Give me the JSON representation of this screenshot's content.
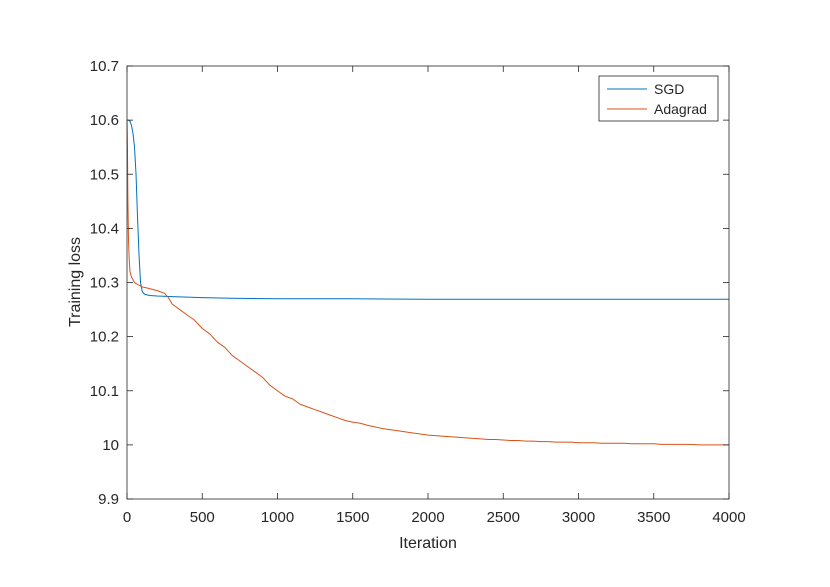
{
  "chart_data": {
    "type": "line",
    "xlabel": "Iteration",
    "ylabel": "Training loss",
    "xlim": [
      0,
      4000
    ],
    "ylim": [
      9.9,
      10.7
    ],
    "xticks": [
      0,
      500,
      1000,
      1500,
      2000,
      2500,
      3000,
      3500,
      4000
    ],
    "xtick_labels": [
      "0",
      "500",
      "1000",
      "1500",
      "2000",
      "2500",
      "3000",
      "3500",
      "4000"
    ],
    "yticks": [
      9.9,
      10,
      10.1,
      10.2,
      10.3,
      10.4,
      10.5,
      10.6,
      10.7
    ],
    "ytick_labels": [
      "9.9",
      "10",
      "10.1",
      "10.2",
      "10.3",
      "10.4",
      "10.5",
      "10.6",
      "10.7"
    ],
    "grid": false,
    "legend_position": "top-right",
    "series": [
      {
        "name": "SGD",
        "color": "#0072BD",
        "x": [
          0,
          10,
          20,
          30,
          40,
          50,
          60,
          70,
          80,
          90,
          100,
          110,
          120,
          150,
          200,
          300,
          400,
          500,
          700,
          1000,
          1500,
          2000,
          2500,
          3000,
          3500,
          4000
        ],
        "y": [
          10.6,
          10.6,
          10.598,
          10.59,
          10.575,
          10.55,
          10.5,
          10.42,
          10.35,
          10.3,
          10.285,
          10.28,
          10.278,
          10.276,
          10.275,
          10.274,
          10.273,
          10.272,
          10.271,
          10.27,
          10.27,
          10.269,
          10.269,
          10.269,
          10.269,
          10.269
        ]
      },
      {
        "name": "Adagrad",
        "color": "#D95319",
        "x": [
          0,
          3,
          6,
          10,
          15,
          20,
          30,
          40,
          50,
          60,
          80,
          100,
          130,
          160,
          200,
          250,
          280,
          300,
          350,
          400,
          450,
          500,
          550,
          600,
          650,
          700,
          750,
          800,
          850,
          900,
          950,
          1000,
          1050,
          1100,
          1150,
          1200,
          1250,
          1300,
          1350,
          1400,
          1450,
          1500,
          1550,
          1600,
          1650,
          1700,
          1750,
          1800,
          1850,
          1900,
          1950,
          2000,
          2050,
          2100,
          2150,
          2200,
          2250,
          2300,
          2350,
          2400,
          2450,
          2500,
          2550,
          2600,
          2650,
          2700,
          2750,
          2800,
          2850,
          2900,
          2950,
          3000,
          3050,
          3100,
          3150,
          3200,
          3250,
          3300,
          3350,
          3400,
          3450,
          3500,
          3550,
          3600,
          3650,
          3700,
          3750,
          3800,
          3850,
          3900,
          3950,
          4000
        ],
        "y": [
          10.6,
          10.55,
          10.45,
          10.38,
          10.34,
          10.32,
          10.31,
          10.305,
          10.3,
          10.298,
          10.295,
          10.292,
          10.29,
          10.288,
          10.285,
          10.28,
          10.27,
          10.26,
          10.25,
          10.24,
          10.23,
          10.215,
          10.205,
          10.19,
          10.18,
          10.165,
          10.155,
          10.145,
          10.135,
          10.125,
          10.11,
          10.1,
          10.09,
          10.085,
          10.075,
          10.07,
          10.065,
          10.06,
          10.055,
          10.05,
          10.045,
          10.042,
          10.04,
          10.036,
          10.033,
          10.03,
          10.028,
          10.026,
          10.024,
          10.022,
          10.02,
          10.018,
          10.017,
          10.016,
          10.015,
          10.014,
          10.013,
          10.012,
          10.011,
          10.01,
          10.01,
          10.009,
          10.008,
          10.008,
          10.007,
          10.007,
          10.006,
          10.006,
          10.005,
          10.005,
          10.005,
          10.004,
          10.004,
          10.004,
          10.003,
          10.003,
          10.003,
          10.003,
          10.002,
          10.002,
          10.002,
          10.002,
          10.001,
          10.001,
          10.001,
          10.001,
          10.001,
          10.0,
          10.0,
          10.0,
          10.0,
          10.0
        ]
      }
    ]
  }
}
